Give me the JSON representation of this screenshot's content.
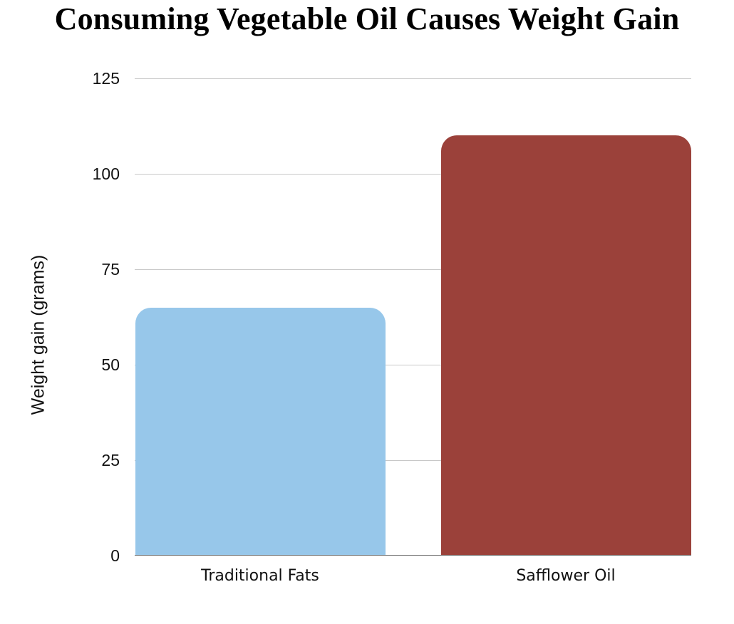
{
  "chart_data": {
    "type": "bar",
    "title": "Consuming Vegetable Oil Causes Weight Gain",
    "xlabel": "",
    "ylabel": "Weight gain (grams)",
    "categories": [
      "Traditional Fats",
      "Safflower Oil"
    ],
    "values": [
      65,
      110
    ],
    "colors": [
      "#97c7ea",
      "#9b413a"
    ],
    "ylim": [
      0,
      125
    ],
    "yticks": [
      "0",
      "25",
      "50",
      "75",
      "100",
      "125"
    ],
    "grid": true,
    "legend": null
  }
}
